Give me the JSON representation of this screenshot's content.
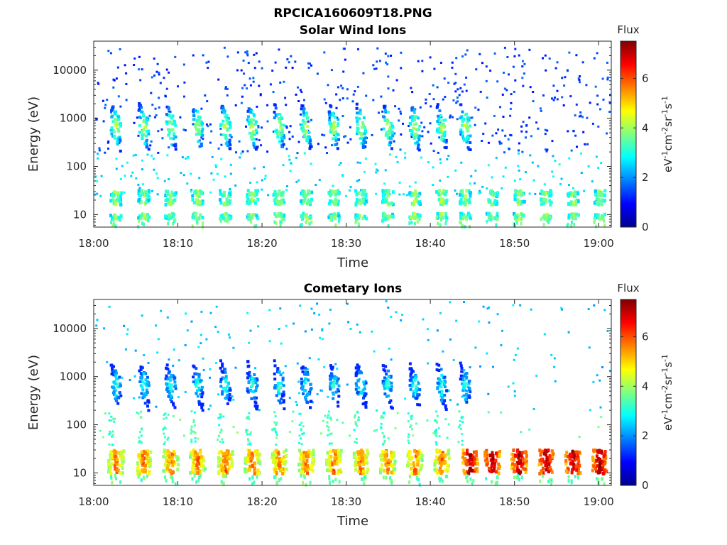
{
  "figure": {
    "title": "RPCICA160609T18.PNG"
  },
  "colormap": [
    "#00008f",
    "#0000ff",
    "#0080ff",
    "#00ffff",
    "#80ff80",
    "#ffff00",
    "#ff8000",
    "#ff0000",
    "#800000"
  ],
  "chart_data": [
    {
      "type": "heatmap",
      "title": "Solar Wind Ions",
      "xlabel": "Time",
      "ylabel": "Energy (eV)",
      "x_ticks": [
        "18:00",
        "18:10",
        "18:20",
        "18:30",
        "18:40",
        "18:50",
        "19:00"
      ],
      "y_ticks": [
        "10",
        "100",
        "1000",
        "10000"
      ],
      "y_scale": "log",
      "ylim": [
        5.5,
        40000
      ],
      "xlim_minutes": [
        0,
        61.5
      ],
      "colorbar": {
        "title": "Flux",
        "label": "eV-1cm-2sr-1s-1",
        "ticks": [
          "0",
          "2",
          "4",
          "6"
        ],
        "range": [
          0,
          7.5
        ]
      },
      "burst_times_min": [
        2.5,
        5.8,
        9.0,
        12.2,
        15.5,
        18.7,
        21.9,
        25.1,
        28.4,
        31.6,
        34.8,
        38.0,
        41.2,
        44.0
      ],
      "burst_center_energy_eV": 700,
      "burst_peak_flux": 4.2,
      "low_energy_bands_eV": [
        10,
        20,
        30
      ],
      "low_energy_peak_flux": 3.6,
      "low_energy_times_min": [
        2.5,
        5.8,
        9.0,
        12.2,
        15.5,
        18.7,
        21.9,
        25.1,
        28.4,
        31.6,
        34.8,
        38.0,
        41.2,
        44.0,
        47.2,
        50.4,
        53.6,
        56.8,
        60.0
      ],
      "background_flux": 1.0
    },
    {
      "type": "heatmap",
      "title": "Cometary Ions",
      "xlabel": "Time",
      "ylabel": "Energy (eV)",
      "x_ticks": [
        "18:00",
        "18:10",
        "18:20",
        "18:30",
        "18:40",
        "18:50",
        "19:00"
      ],
      "y_ticks": [
        "10",
        "100",
        "1000",
        "10000"
      ],
      "y_scale": "log",
      "ylim": [
        5.5,
        40000
      ],
      "xlim_minutes": [
        0,
        61.5
      ],
      "colorbar": {
        "title": "Flux",
        "label": "eV-1cm-2sr-1s-1",
        "ticks": [
          "0",
          "2",
          "4",
          "6"
        ],
        "range": [
          0,
          7.5
        ]
      },
      "burst_times_min": [
        2.5,
        5.8,
        9.0,
        12.2,
        15.5,
        18.7,
        21.9,
        25.1,
        28.4,
        31.6,
        34.8,
        38.0,
        41.2,
        44.0
      ],
      "burst_center_energy_eV": 700,
      "burst_peak_flux": 3.2,
      "low_energy_bands_eV": [
        12,
        17,
        22,
        28
      ],
      "low_energy_peak_flux": 6.8,
      "low_energy_times_min": [
        2.5,
        5.8,
        9.0,
        12.2,
        15.5,
        18.7,
        21.9,
        25.1,
        28.4,
        31.6,
        34.8,
        38.0,
        41.2,
        44.6,
        47.2,
        50.4,
        53.6,
        56.8,
        60.0
      ],
      "background_flux": 2.0
    }
  ]
}
